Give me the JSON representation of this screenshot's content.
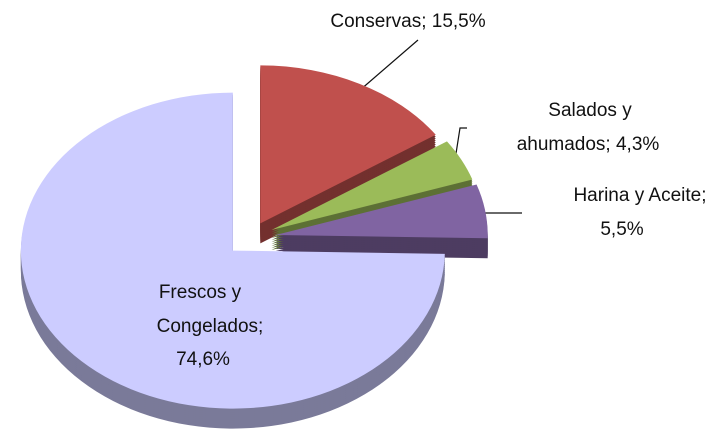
{
  "chart_data": {
    "type": "pie3d",
    "values": [
      15.5,
      4.3,
      5.5,
      74.6
    ],
    "value_labels": [
      [
        "Conservas; 15,5%"
      ],
      [
        "Salados y",
        "ahumados; 4,3%"
      ],
      [
        "Harina y Aceite;",
        "5,5%"
      ],
      [
        "Frescos y",
        "Congelados;",
        "74,6%"
      ]
    ],
    "colors": [
      "#c0504d",
      "#9bbb59",
      "#8064a2",
      "#ccccff"
    ]
  }
}
